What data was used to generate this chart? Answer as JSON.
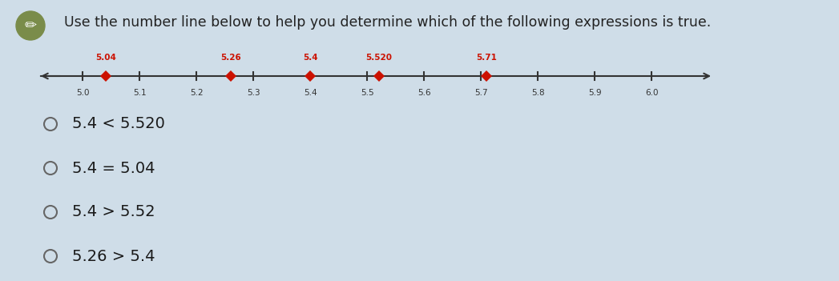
{
  "title": "Use the number line below to help you determine which of the following expressions is true.",
  "title_fontsize": 12.5,
  "title_color": "#222222",
  "bg_color": "#cfdde8",
  "number_line": {
    "xmin": 4.95,
    "xmax": 6.08,
    "tick_positions": [
      5.0,
      5.1,
      5.2,
      5.3,
      5.4,
      5.5,
      5.6,
      5.7,
      5.8,
      5.9,
      6.0
    ],
    "tick_labels": [
      "5.0",
      "5.1",
      "5.2",
      "5.3",
      "5.4",
      "5.5",
      "5.6",
      "5.7",
      "5.8",
      "5.9",
      "6.0"
    ],
    "marked_points": [
      5.04,
      5.26,
      5.4,
      5.52,
      5.71
    ],
    "marked_labels": [
      "5.04",
      "5.26",
      "5.4",
      "5.520",
      "5.71"
    ],
    "marker_color": "#cc1100",
    "line_color": "#333333"
  },
  "choices": [
    "5.4 < 5.520",
    "5.4 = 5.04",
    "5.4 > 5.52",
    "5.26 > 5.4"
  ],
  "choice_fontsize": 14,
  "choice_color": "#1a1a1a",
  "pencil_color": "#7a8c4a"
}
